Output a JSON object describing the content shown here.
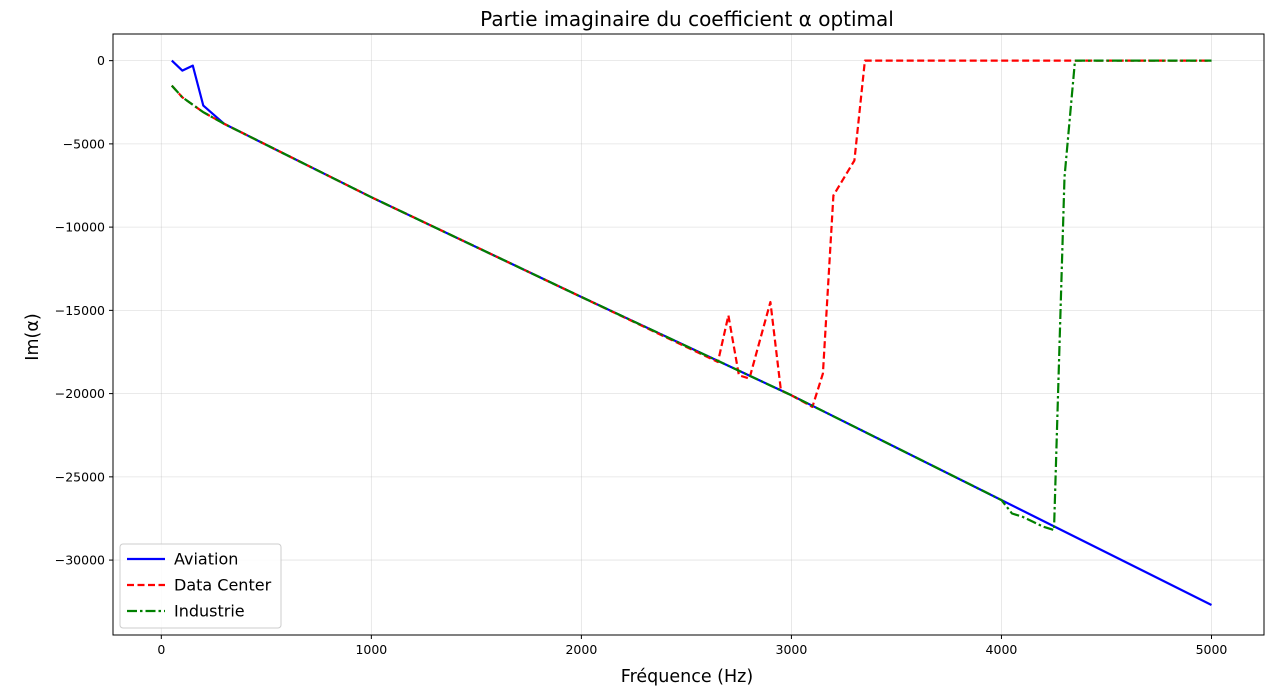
{
  "chart_data": {
    "type": "line",
    "title": "Partie imaginaire du coefficient α optimal",
    "xlabel": "Fréquence (Hz)",
    "ylabel": "Im(α)",
    "xlim": [
      -230,
      5250
    ],
    "ylim": [
      -34500,
      1600
    ],
    "xticks": [
      0,
      1000,
      2000,
      3000,
      4000,
      5000
    ],
    "yticks": [
      0,
      -5000,
      -10000,
      -15000,
      -20000,
      -25000,
      -30000
    ],
    "xtick_labels": [
      "0",
      "1000",
      "2000",
      "3000",
      "4000",
      "5000"
    ],
    "ytick_labels": [
      "0",
      "−5000",
      "−10000",
      "−15000",
      "−20000",
      "−25000",
      "−30000"
    ],
    "grid": true,
    "legend_position": "lower-left",
    "series": [
      {
        "name": "Aviation",
        "color": "#0000ff",
        "dash": "solid",
        "points": [
          [
            50,
            0
          ],
          [
            100,
            -600
          ],
          [
            150,
            -300
          ],
          [
            200,
            -2700
          ],
          [
            300,
            -3800
          ],
          [
            1000,
            -8200
          ],
          [
            2000,
            -14200
          ],
          [
            3000,
            -20100
          ],
          [
            4000,
            -26400
          ],
          [
            5000,
            -32700
          ]
        ]
      },
      {
        "name": "Data Center",
        "color": "#ff0000",
        "dash": "dashed",
        "points": [
          [
            50,
            -1500
          ],
          [
            100,
            -2200
          ],
          [
            200,
            -3100
          ],
          [
            300,
            -3800
          ],
          [
            1000,
            -8200
          ],
          [
            2000,
            -14200
          ],
          [
            2650,
            -18100
          ],
          [
            2700,
            -15300
          ],
          [
            2750,
            -18900
          ],
          [
            2800,
            -19100
          ],
          [
            2900,
            -14500
          ],
          [
            2950,
            -19800
          ],
          [
            3000,
            -20100
          ],
          [
            3100,
            -20800
          ],
          [
            3150,
            -18800
          ],
          [
            3200,
            -8100
          ],
          [
            3300,
            -6000
          ],
          [
            3350,
            0
          ],
          [
            5000,
            0
          ]
        ]
      },
      {
        "name": "Industrie",
        "color": "#008000",
        "dash": "dashdot",
        "points": [
          [
            50,
            -1500
          ],
          [
            100,
            -2200
          ],
          [
            200,
            -3100
          ],
          [
            300,
            -3800
          ],
          [
            1000,
            -8200
          ],
          [
            2000,
            -14200
          ],
          [
            3000,
            -20100
          ],
          [
            4000,
            -26400
          ],
          [
            4050,
            -27200
          ],
          [
            4100,
            -27400
          ],
          [
            4150,
            -27700
          ],
          [
            4200,
            -28000
          ],
          [
            4250,
            -28200
          ],
          [
            4300,
            -7000
          ],
          [
            4350,
            0
          ],
          [
            5000,
            0
          ]
        ]
      }
    ]
  }
}
